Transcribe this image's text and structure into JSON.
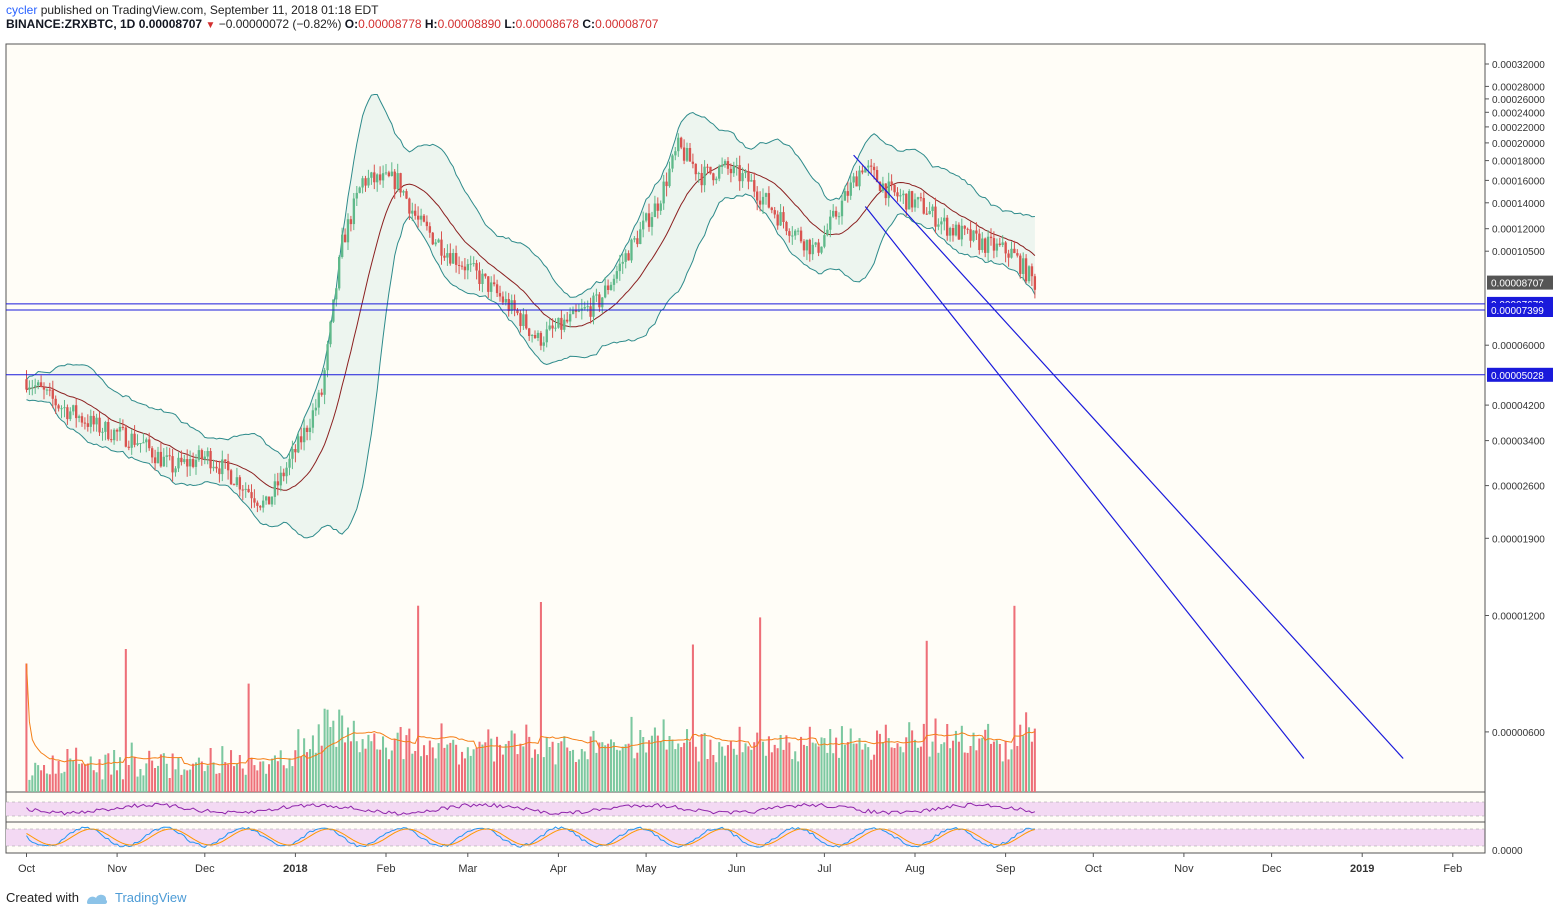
{
  "header": {
    "author": "cycler",
    "published": "published on TradingView.com, September 11, 2018 01:18 EDT",
    "symbol": "BINANCE:ZRXBTC, 1D",
    "last": "0.00008707",
    "change": "−0.00000072 (−0.82%)",
    "o_label": "O:",
    "o": "0.00008778",
    "h_label": "H:",
    "h": "0.00008890",
    "l_label": "L:",
    "l": "0.00008678",
    "c_label": "C:",
    "c": "0.00008707"
  },
  "footer": {
    "created": "Created with",
    "brand": "TradingView"
  },
  "colors": {
    "up": "#5fb98a",
    "down": "#d9534f",
    "band": "#2e8b8b",
    "band_fill": "#e8f3ec",
    "basis": "#8b2020",
    "trend": "#1a1adb",
    "vol_up": "#7cc8a0",
    "vol_down": "#ee6f78",
    "vol_ma": "#f57f17",
    "rsi": "#8e24aa",
    "stoch_k": "#2196f3",
    "stoch_d": "#ff9800",
    "osc_bg": "#f3d9f3"
  },
  "chart_data": {
    "type": "candlestick",
    "scale": "log",
    "x_labels": [
      "Oct",
      "Nov",
      "Dec",
      "2018",
      "Feb",
      "Mar",
      "Apr",
      "May",
      "Jun",
      "Jul",
      "Aug",
      "Sep",
      "Oct",
      "Nov",
      "Dec",
      "2019",
      "Feb"
    ],
    "y_labels": [
      "0.00032000",
      "0.00028000",
      "0.00026000",
      "0.00024000",
      "0.00022000",
      "0.00020000",
      "0.00018000",
      "0.00016000",
      "0.00014000",
      "0.00012000",
      "0.00010500",
      "0.00006000",
      "0.00004200",
      "0.00003400",
      "0.00002600",
      "0.00001900",
      "0.00001200",
      "0.00000600"
    ],
    "y_ticks": [
      0.00032,
      0.00028,
      0.00026,
      0.00024,
      0.00022,
      0.0002,
      0.00018,
      0.00016,
      0.00014,
      0.00012,
      0.000105,
      6e-05,
      4.2e-05,
      3.4e-05,
      2.6e-05,
      1.9e-05,
      1.2e-05,
      6e-06
    ],
    "price_tags": [
      {
        "value": "0.00008707",
        "style": "last"
      },
      {
        "value": "0.00007670",
        "style": "level"
      },
      {
        "value": "0.00007399",
        "style": "level"
      },
      {
        "value": "0.00005028",
        "style": "level"
      }
    ],
    "horizontal_levels": [
      7.67e-05,
      7.399e-05,
      5.028e-05
    ],
    "price_path": [
      [
        "2017-10-01",
        4.9e-05
      ],
      [
        "2017-10-12",
        4.2e-05
      ],
      [
        "2017-10-25",
        3.7e-05
      ],
      [
        "2017-11-08",
        3.4e-05
      ],
      [
        "2017-11-20",
        2.9e-05
      ],
      [
        "2017-12-02",
        3.1e-05
      ],
      [
        "2017-12-12",
        2.7e-05
      ],
      [
        "2017-12-22",
        2.3e-05
      ],
      [
        "2018-01-02",
        3.3e-05
      ],
      [
        "2018-01-10",
        4.5e-05
      ],
      [
        "2018-01-17",
        0.00011
      ],
      [
        "2018-01-24",
        0.00016
      ],
      [
        "2018-02-05",
        0.00016
      ],
      [
        "2018-02-12",
        0.000125
      ],
      [
        "2018-02-22",
        0.000105
      ],
      [
        "2018-03-05",
        9e-05
      ],
      [
        "2018-03-18",
        7.2e-05
      ],
      [
        "2018-03-25",
        6.2e-05
      ],
      [
        "2018-04-03",
        6.8e-05
      ],
      [
        "2018-04-15",
        7.8e-05
      ],
      [
        "2018-04-25",
        0.000105
      ],
      [
        "2018-05-05",
        0.00014
      ],
      [
        "2018-05-12",
        0.000195
      ],
      [
        "2018-05-20",
        0.000165
      ],
      [
        "2018-05-28",
        0.000172
      ],
      [
        "2018-06-05",
        0.00016
      ],
      [
        "2018-06-15",
        0.00013
      ],
      [
        "2018-06-28",
        0.000105
      ],
      [
        "2018-07-06",
        0.000135
      ],
      [
        "2018-07-14",
        0.000175
      ],
      [
        "2018-07-24",
        0.000148
      ],
      [
        "2018-08-03",
        0.000138
      ],
      [
        "2018-08-13",
        0.00012
      ],
      [
        "2018-08-24",
        0.00011
      ],
      [
        "2018-09-03",
        0.000104
      ],
      [
        "2018-09-11",
        8.7e-05
      ]
    ],
    "channel": {
      "upper": [
        [
          "2018-07-11",
          0.000186
        ],
        [
          "2019-01-15",
          5.12e-06
        ]
      ],
      "lower": [
        [
          "2018-07-15",
          0.000137
        ],
        [
          "2018-12-12",
          5.12e-06
        ]
      ]
    },
    "panes": [
      "price",
      "volume",
      "RSI",
      "Stoch RSI"
    ]
  }
}
